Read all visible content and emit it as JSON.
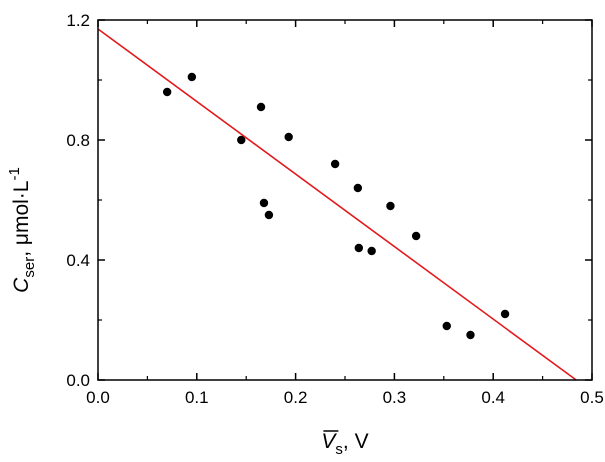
{
  "chart_data": {
    "type": "scatter",
    "x_axis": {
      "label": {
        "symbol": "V",
        "subscript": "s",
        "unit": ", V",
        "overline": true
      },
      "range": [
        0.0,
        0.5
      ],
      "ticks": [
        "0.0",
        "0.1",
        "0.2",
        "0.3",
        "0.4",
        "0.5"
      ],
      "minor_step": 0.05
    },
    "y_axis": {
      "label": {
        "symbol": "C",
        "subscript": "ser",
        "unit": ", μmol·L",
        "superscript": "-1"
      },
      "range": [
        0.0,
        1.2
      ],
      "ticks": [
        "0.0",
        "0.4",
        "0.8",
        "1.2"
      ],
      "minor_step": 0.2
    },
    "series": [
      {
        "type": "scatter",
        "marker": "filled-circle",
        "color": "#000000",
        "points": [
          {
            "x": 0.07,
            "y": 0.96
          },
          {
            "x": 0.095,
            "y": 1.01
          },
          {
            "x": 0.145,
            "y": 0.8
          },
          {
            "x": 0.165,
            "y": 0.91
          },
          {
            "x": 0.168,
            "y": 0.59
          },
          {
            "x": 0.173,
            "y": 0.55
          },
          {
            "x": 0.193,
            "y": 0.81
          },
          {
            "x": 0.24,
            "y": 0.72
          },
          {
            "x": 0.263,
            "y": 0.64
          },
          {
            "x": 0.264,
            "y": 0.44
          },
          {
            "x": 0.277,
            "y": 0.43
          },
          {
            "x": 0.296,
            "y": 0.58
          },
          {
            "x": 0.322,
            "y": 0.48
          },
          {
            "x": 0.353,
            "y": 0.18
          },
          {
            "x": 0.377,
            "y": 0.15
          },
          {
            "x": 0.412,
            "y": 0.22
          }
        ]
      },
      {
        "type": "line",
        "fit": "linear",
        "color": "#e31a1c",
        "points": [
          {
            "x": 0.0,
            "y": 1.17
          },
          {
            "x": 0.484,
            "y": 0.0
          }
        ]
      }
    ],
    "grid": false,
    "legend": "none"
  }
}
